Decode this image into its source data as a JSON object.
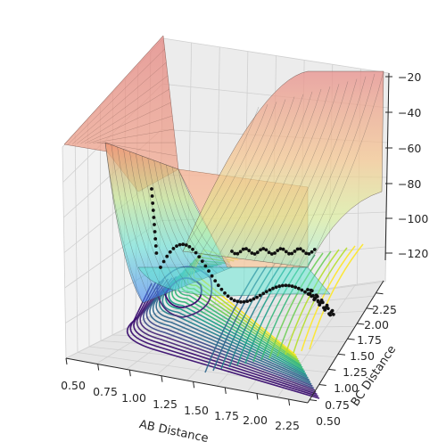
{
  "chart_data": {
    "type": "surface3d",
    "title": "",
    "xlabel": "AB Distance",
    "ylabel": "BC Distance",
    "zlabel": "",
    "x_ticks": [
      "0.50",
      "0.75",
      "1.00",
      "1.25",
      "1.50",
      "1.75",
      "2.00",
      "2.25"
    ],
    "y_ticks": [
      "0.50",
      "0.75",
      "1.00",
      "1.25",
      "1.50",
      "1.75",
      "2.00",
      "2.25"
    ],
    "z_ticks": [
      "−120",
      "−100",
      "−80",
      "−60",
      "−40",
      "−20"
    ],
    "x_range": [
      0.5,
      2.5
    ],
    "y_range": [
      0.5,
      2.5
    ],
    "z_range": [
      -130,
      -20
    ],
    "grid": true,
    "surface": "potential energy surface with translucent warm-to-cool coloring",
    "contours": "filled contour lines on the base plane, viridis colormap",
    "trajectory": "black points along the reaction valley"
  },
  "colors": {
    "contour_low": "#3b0f70",
    "contour_mid": "#21918c",
    "contour_high": "#fde725",
    "surface_high": "#e8908a",
    "surface_mid": "#f7c58a",
    "surface_low": "#6fd3f5",
    "trajectory": "#111111"
  }
}
